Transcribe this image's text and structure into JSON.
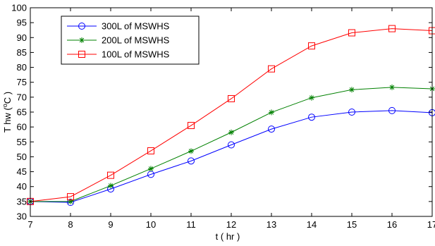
{
  "chart_data": {
    "type": "line",
    "title": "",
    "xlabel": "t ( hr )",
    "ylabel": "T hw (",
    "ylabel_sup": "o",
    "ylabel_tail": "C )",
    "xlim": [
      7,
      17
    ],
    "ylim": [
      30,
      100
    ],
    "xticks": [
      7,
      8,
      9,
      10,
      11,
      12,
      13,
      14,
      15,
      16,
      17
    ],
    "yticks": [
      30,
      35,
      40,
      45,
      50,
      55,
      60,
      65,
      70,
      75,
      80,
      85,
      90,
      95,
      100
    ],
    "grid": false,
    "legend_position": "top-left",
    "x": [
      7,
      8,
      9,
      10,
      11,
      12,
      13,
      14,
      15,
      16,
      17
    ],
    "series": [
      {
        "name": "300L of MSWHS",
        "color": "#0000ff",
        "marker": "circle",
        "values": [
          35,
          34.7,
          39.2,
          44.1,
          48.6,
          54,
          59.3,
          63.3,
          65,
          65.5,
          64.8
        ]
      },
      {
        "name": "200L of MSWHS",
        "color": "#008000",
        "marker": "star",
        "values": [
          35,
          35,
          40.3,
          46,
          51.9,
          58.2,
          64.9,
          69.8,
          72.5,
          73.3,
          72.8
        ]
      },
      {
        "name": "100L of MSWHS",
        "color": "#ff0000",
        "marker": "square",
        "values": [
          35,
          36.6,
          43.8,
          52,
          60.5,
          69.5,
          79.5,
          87.2,
          91.6,
          93,
          92.3
        ]
      }
    ]
  }
}
